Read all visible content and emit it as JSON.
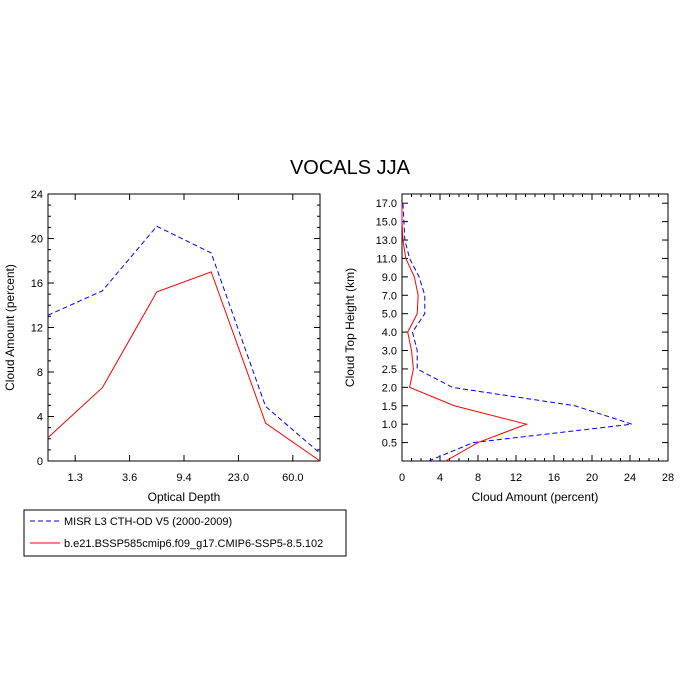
{
  "title": "VOCALS JJA",
  "colors": {
    "obs": "#0000ff",
    "model": "#ff0000",
    "axis": "#000000"
  },
  "legend": {
    "placement": "bottom-left",
    "entries": [
      {
        "label": "MISR L3 CTH-OD V5 (2000-2009)",
        "color": "#0000ff",
        "dash": true
      },
      {
        "label": "b.e21.BSSP585cmip6.f09_g17.CMIP6-SSP5-8.5.102",
        "color": "#ff0000",
        "dash": false
      }
    ]
  },
  "chart_data": [
    {
      "type": "line",
      "xlabel": "Optical Depth",
      "ylabel": "Cloud Amount (percent)",
      "x_ticks": [
        "1.3",
        "3.6",
        "9.4",
        "23.0",
        "60.0"
      ],
      "ylim": [
        0,
        24
      ],
      "y_ticks": [
        0,
        4,
        8,
        12,
        16,
        20,
        24
      ],
      "x_bins": [
        "0.3-1.3",
        "1.3-3.6",
        "3.6-9.4",
        "9.4-23.0",
        "23.0-60.0",
        ">60.0"
      ],
      "series": [
        {
          "name": "MISR L3 CTH-OD V5 (2000-2009)",
          "values": [
            13.1,
            15.3,
            21.1,
            18.7,
            4.9,
            0.7
          ]
        },
        {
          "name": "b.e21.BSSP585cmip6.f09_g17.CMIP6-SSP5-8.5.102",
          "values": [
            2.1,
            6.6,
            15.2,
            17.0,
            3.4,
            0.0
          ]
        }
      ]
    },
    {
      "type": "line",
      "xlabel": "Cloud Amount (percent)",
      "ylabel": "Cloud Top Height (km)",
      "xlim": [
        0,
        28
      ],
      "x_ticks": [
        0,
        4,
        8,
        12,
        16,
        20,
        24,
        28
      ],
      "y_ticks": [
        "0.5",
        "1.0",
        "1.5",
        "2.0",
        "2.5",
        "3.0",
        "4.0",
        "5.0",
        "7.0",
        "9.0",
        "11.0",
        "13.0",
        "15.0",
        "17.0"
      ],
      "series": [
        {
          "name": "MISR L3 CTH-OD V5 (2000-2009)",
          "heights": [
            "0",
            "0.5",
            "1.0",
            "1.5",
            "2.0",
            "2.5",
            "3.0",
            "4.0",
            "5.0",
            "7.0",
            "9.0",
            "11.0",
            "13.0",
            "15.0",
            "17.0"
          ],
          "values": [
            2.8,
            7.5,
            24.2,
            18.2,
            5.3,
            1.6,
            1.6,
            1.1,
            2.4,
            2.4,
            1.8,
            0.8,
            0.3,
            0.2,
            0.1
          ]
        },
        {
          "name": "b.e21.BSSP585cmip6.f09_g17.CMIP6-SSP5-8.5.102",
          "heights": [
            "0",
            "0.5",
            "1.0",
            "1.5",
            "2.0",
            "2.5",
            "3.0",
            "4.0",
            "5.0",
            "7.0",
            "9.0",
            "11.0",
            "13.0",
            "15.0",
            "17.0"
          ],
          "values": [
            4.6,
            8.0,
            13.1,
            5.5,
            0.8,
            1.2,
            1.0,
            0.6,
            1.6,
            1.7,
            1.3,
            0.4,
            0.1,
            0.0,
            0.0
          ]
        }
      ]
    }
  ]
}
